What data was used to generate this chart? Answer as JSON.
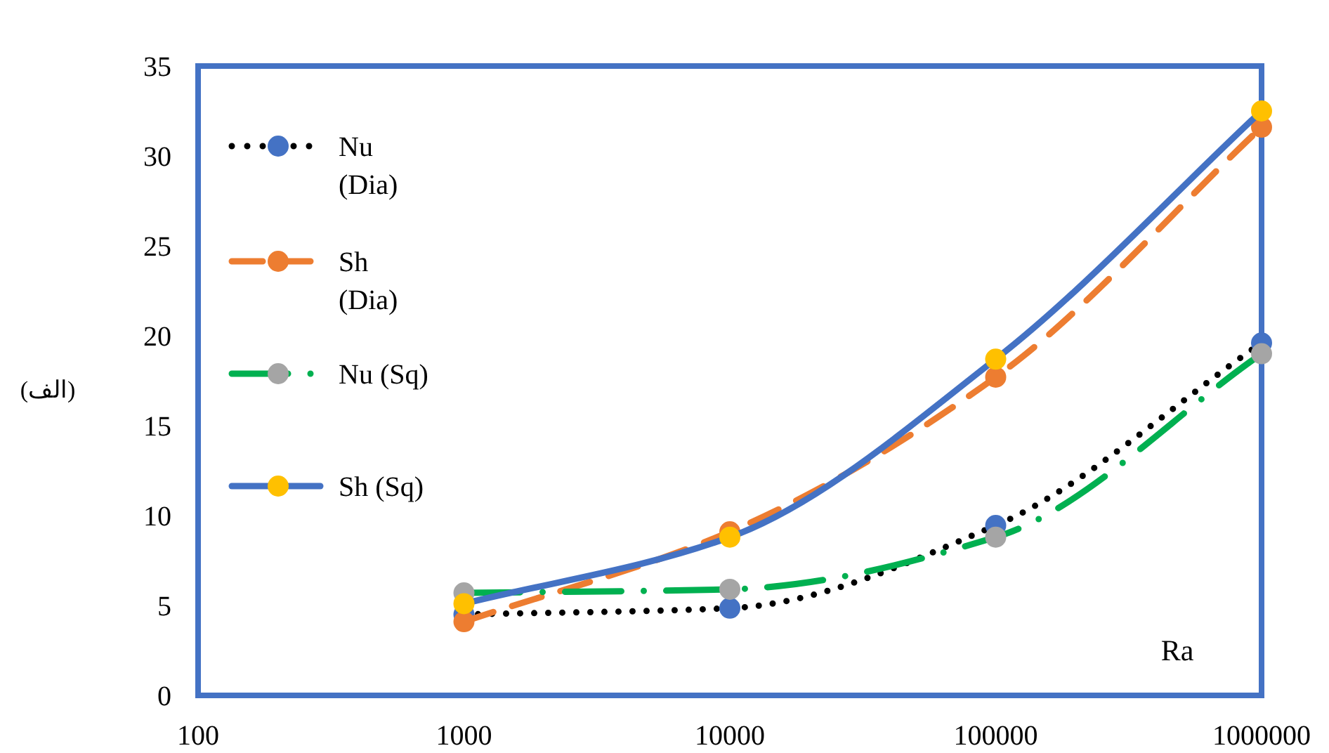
{
  "chart_data": {
    "type": "line",
    "xlabel": "Ra",
    "annotations": [
      "(الف)"
    ],
    "x": [
      1000,
      10000,
      100000,
      1000000
    ],
    "log": "x",
    "xlim": [
      100,
      1000000
    ],
    "xticks": [
      100,
      1000,
      10000,
      100000,
      1000000
    ],
    "ylim": [
      0,
      35
    ],
    "yticks": [
      0,
      5,
      10,
      15,
      20,
      25,
      30,
      35
    ],
    "grid": false,
    "legend": "top left",
    "marker": "circle",
    "series": [
      {
        "name": "Nu (Dia)",
        "color": "#000000",
        "colors": [
          "#4472c4",
          "#4472c4",
          "#4472c4",
          "#4472c4"
        ],
        "line_style": "dotted",
        "values": [
          4.5,
          4.85,
          9.45,
          19.6
        ]
      },
      {
        "name": "Sh (Dia)",
        "color": "#ed7d31",
        "colors": [
          "#ed7d31",
          "#ed7d31",
          "#ed7d31",
          "#ed7d31"
        ],
        "line_style": "dashed",
        "values": [
          4.1,
          9.1,
          17.7,
          31.6
        ]
      },
      {
        "name": "Nu (Sq)",
        "color": "#00b050",
        "colors": [
          "#a5a5a5",
          "#a5a5a5",
          "#a5a5a5",
          "#a5a5a5"
        ],
        "line_style": "dashdot",
        "values": [
          5.7,
          5.9,
          8.8,
          19.0
        ]
      },
      {
        "name": "Sh (Sq)",
        "color": "#4472c4",
        "colors": [
          "#ffc000",
          "#ffc000",
          "#ffc000",
          "#ffc000"
        ],
        "line_style": "solid",
        "values": [
          5.1,
          8.8,
          18.7,
          32.5
        ]
      }
    ]
  }
}
